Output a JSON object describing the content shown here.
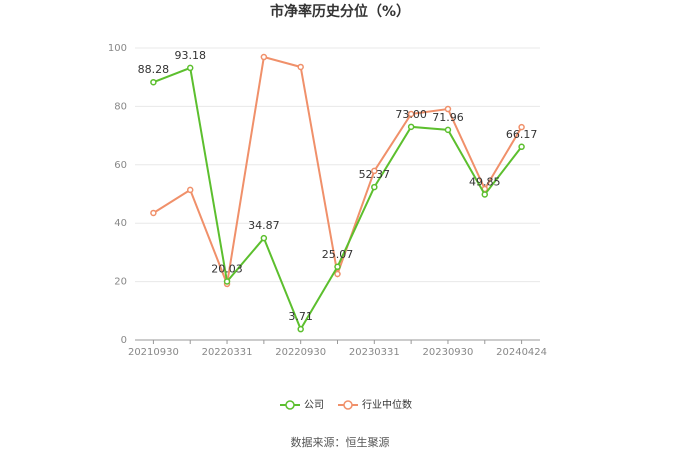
{
  "chart_data": {
    "type": "line",
    "title": "市净率历史分位（%）",
    "categories": [
      "20210930",
      null,
      "20220331",
      null,
      "20220930",
      null,
      "20230331",
      null,
      "20230930",
      null,
      "20240424"
    ],
    "series": [
      {
        "name": "公司",
        "color": "#5cbf2e",
        "values": [
          88.28,
          93.18,
          20.03,
          34.87,
          3.71,
          25.07,
          52.37,
          73,
          71.96,
          49.85,
          66.17
        ],
        "value_labels": [
          "88.28",
          "93.18",
          "20.03",
          "34.87",
          "3.71",
          "25.07",
          "52.37",
          "73.00",
          "71.96",
          "49.85",
          "66.17"
        ]
      },
      {
        "name": "行业中位数",
        "color": "#f0906a",
        "values": [
          43.5,
          51.4,
          19.2,
          96.9,
          93.5,
          22.6,
          57.9,
          77.4,
          79.1,
          51.7,
          72.9
        ]
      }
    ],
    "ylim": [
      0,
      100
    ],
    "yticks": [
      0,
      20,
      40,
      60,
      80,
      100
    ],
    "grid": true,
    "source": "数据来源：恒生聚源"
  }
}
